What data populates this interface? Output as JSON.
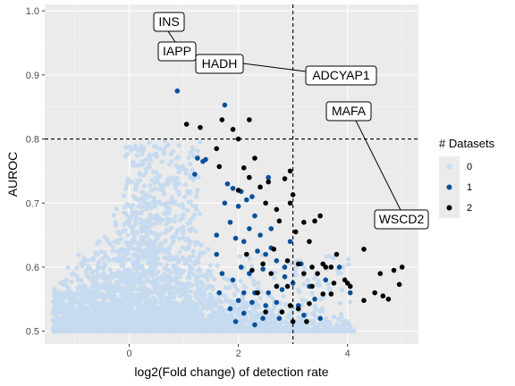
{
  "chart_data": {
    "type": "scatter",
    "xlabel": "log2(Fold change) of detection rate",
    "ylabel": "AUROC",
    "xlim": [
      -1.55,
      5.3
    ],
    "ylim": [
      0.48,
      1.01
    ],
    "xticks": [
      0,
      2,
      4
    ],
    "yticks": [
      0.5,
      0.6,
      0.7,
      0.8,
      0.9,
      1.0
    ],
    "xtick_labels": [
      "0",
      "2",
      "4"
    ],
    "ytick_labels": [
      "0.5",
      "0.6",
      "0.7",
      "0.8",
      "0.9",
      "1.0"
    ],
    "reference_lines": [
      {
        "orientation": "vertical",
        "x": 3.0,
        "style": "dashed"
      },
      {
        "orientation": "horizontal",
        "y": 0.8,
        "style": "dashed"
      }
    ],
    "legend": {
      "title": "# Datasets",
      "position": "right",
      "entries": [
        {
          "label": "0",
          "color": "#c6dbef"
        },
        {
          "label": "1",
          "color": "#08519c"
        },
        {
          "label": "2",
          "color": "#000000"
        }
      ]
    },
    "series": [
      {
        "name": "2",
        "color": "#000000",
        "points": [
          [
            1.05,
            0.823
          ],
          [
            1.3,
            0.818
          ],
          [
            1.7,
            0.83
          ],
          [
            1.9,
            0.815
          ],
          [
            2.0,
            0.8
          ],
          [
            2.2,
            0.83
          ],
          [
            1.6,
            0.785
          ],
          [
            2.3,
            0.77
          ],
          [
            2.55,
            0.733
          ],
          [
            2.4,
            0.725
          ],
          [
            2.85,
            0.738
          ],
          [
            2.95,
            0.75
          ],
          [
            3.0,
            0.713
          ],
          [
            1.65,
            0.757
          ],
          [
            2.1,
            0.755
          ],
          [
            2.2,
            0.74
          ],
          [
            2.0,
            0.72
          ],
          [
            2.5,
            0.7
          ],
          [
            2.7,
            0.69
          ],
          [
            2.95,
            0.7
          ],
          [
            2.75,
            0.672
          ],
          [
            3.2,
            0.67
          ],
          [
            3.4,
            0.672
          ],
          [
            3.5,
            0.68
          ],
          [
            3.05,
            0.655
          ],
          [
            3.3,
            0.64
          ],
          [
            3.55,
            0.605
          ],
          [
            3.1,
            0.605
          ],
          [
            3.2,
            0.59
          ],
          [
            3.35,
            0.6
          ],
          [
            3.45,
            0.59
          ],
          [
            3.6,
            0.6
          ],
          [
            3.75,
            0.575
          ],
          [
            3.95,
            0.58
          ],
          [
            3.7,
            0.6
          ],
          [
            3.8,
            0.62
          ],
          [
            4.0,
            0.575
          ],
          [
            4.3,
            0.628
          ],
          [
            4.5,
            0.56
          ],
          [
            4.6,
            0.59
          ],
          [
            4.75,
            0.55
          ],
          [
            4.85,
            0.595
          ],
          [
            4.65,
            0.555
          ],
          [
            5.0,
            0.6
          ],
          [
            4.95,
            0.573
          ],
          [
            4.3,
            0.548
          ],
          [
            4.05,
            0.57
          ],
          [
            3.35,
            0.57
          ],
          [
            3.55,
            0.558
          ],
          [
            3.7,
            0.558
          ],
          [
            3.3,
            0.543
          ],
          [
            3.1,
            0.535
          ],
          [
            2.95,
            0.54
          ],
          [
            2.8,
            0.53
          ],
          [
            2.5,
            0.53
          ],
          [
            2.35,
            0.56
          ],
          [
            2.6,
            0.59
          ],
          [
            2.45,
            0.605
          ],
          [
            2.25,
            0.595
          ],
          [
            2.15,
            0.62
          ],
          [
            2.65,
            0.628
          ],
          [
            2.9,
            0.61
          ],
          [
            2.7,
            0.57
          ],
          [
            2.9,
            0.57
          ],
          [
            3.0,
            0.515
          ],
          [
            3.25,
            0.515
          ]
        ]
      },
      {
        "name": "1",
        "color": "#08519c",
        "points": [
          [
            0.88,
            0.875
          ],
          [
            1.75,
            0.853
          ],
          [
            1.25,
            0.77
          ],
          [
            1.35,
            0.765
          ],
          [
            1.4,
            0.768
          ],
          [
            1.2,
            0.745
          ],
          [
            1.8,
            0.73
          ],
          [
            1.9,
            0.723
          ],
          [
            2.05,
            0.718
          ],
          [
            2.15,
            0.705
          ],
          [
            2.25,
            0.71
          ],
          [
            2.0,
            0.695
          ],
          [
            2.3,
            0.68
          ],
          [
            1.85,
            0.67
          ],
          [
            2.2,
            0.66
          ],
          [
            2.4,
            0.65
          ],
          [
            1.95,
            0.645
          ],
          [
            2.1,
            0.64
          ],
          [
            2.35,
            0.625
          ],
          [
            2.6,
            0.63
          ],
          [
            2.5,
            0.62
          ],
          [
            2.7,
            0.61
          ],
          [
            2.85,
            0.6
          ],
          [
            2.45,
            0.597
          ],
          [
            2.2,
            0.59
          ],
          [
            2.05,
            0.6
          ],
          [
            1.9,
            0.58
          ],
          [
            2.1,
            0.56
          ],
          [
            2.3,
            0.56
          ],
          [
            2.55,
            0.56
          ],
          [
            2.8,
            0.565
          ],
          [
            3.0,
            0.575
          ],
          [
            3.3,
            0.57
          ],
          [
            3.6,
            0.58
          ],
          [
            3.85,
            0.6
          ],
          [
            4.05,
            0.56
          ],
          [
            2.0,
            0.548
          ],
          [
            2.25,
            0.545
          ],
          [
            2.5,
            0.54
          ],
          [
            2.7,
            0.545
          ],
          [
            3.1,
            0.54
          ],
          [
            3.4,
            0.55
          ],
          [
            1.85,
            0.535
          ],
          [
            2.1,
            0.528
          ],
          [
            2.45,
            0.52
          ],
          [
            2.75,
            0.52
          ],
          [
            3.2,
            0.525
          ],
          [
            3.5,
            0.52
          ],
          [
            2.3,
            0.51
          ],
          [
            1.95,
            0.515
          ],
          [
            1.65,
            0.56
          ],
          [
            1.7,
            0.59
          ],
          [
            2.95,
            0.64
          ],
          [
            2.6,
            0.66
          ],
          [
            1.75,
            0.7
          ],
          [
            2.55,
            0.74
          ],
          [
            1.6,
            0.65
          ],
          [
            1.6,
            0.62
          ],
          [
            2.85,
            0.585
          ],
          [
            3.15,
            0.605
          ]
        ]
      }
    ],
    "background_cluster": {
      "name": "0",
      "color": "#c6dbef",
      "description_ranges": {
        "x": [
          -1.5,
          4.2
        ],
        "y": [
          0.5,
          0.805
        ]
      }
    },
    "gene_labels": [
      {
        "label": "INS",
        "x": 0.0,
        "y": 1.0
      },
      {
        "label": "IAPP",
        "x": 0.0,
        "y": 0.97
      },
      {
        "label": "HADH",
        "x": 1.7,
        "y": 0.9
      },
      {
        "label": "ADCYAP1",
        "x": 2.9,
        "y": 0.89
      },
      {
        "label": "MAFA",
        "x": 3.7,
        "y": 0.86
      },
      {
        "label": "WSCD2",
        "x": 5.0,
        "y": 0.66
      }
    ],
    "annotation_labels": [
      {
        "label": "INS",
        "point": [
          0.55,
          0.96
        ]
      },
      {
        "label": "IAPP",
        "point": [
          0.55,
          0.95
        ]
      },
      {
        "label": "HADH",
        "point": [
          1.4,
          0.92
        ]
      },
      {
        "label": "ADCYAP1",
        "point": [
          2.8,
          0.895
        ]
      },
      {
        "label": "MAFA",
        "point": [
          3.7,
          0.845
        ]
      },
      {
        "label": "WSCD2",
        "point": [
          4.75,
          0.67
        ]
      }
    ]
  }
}
